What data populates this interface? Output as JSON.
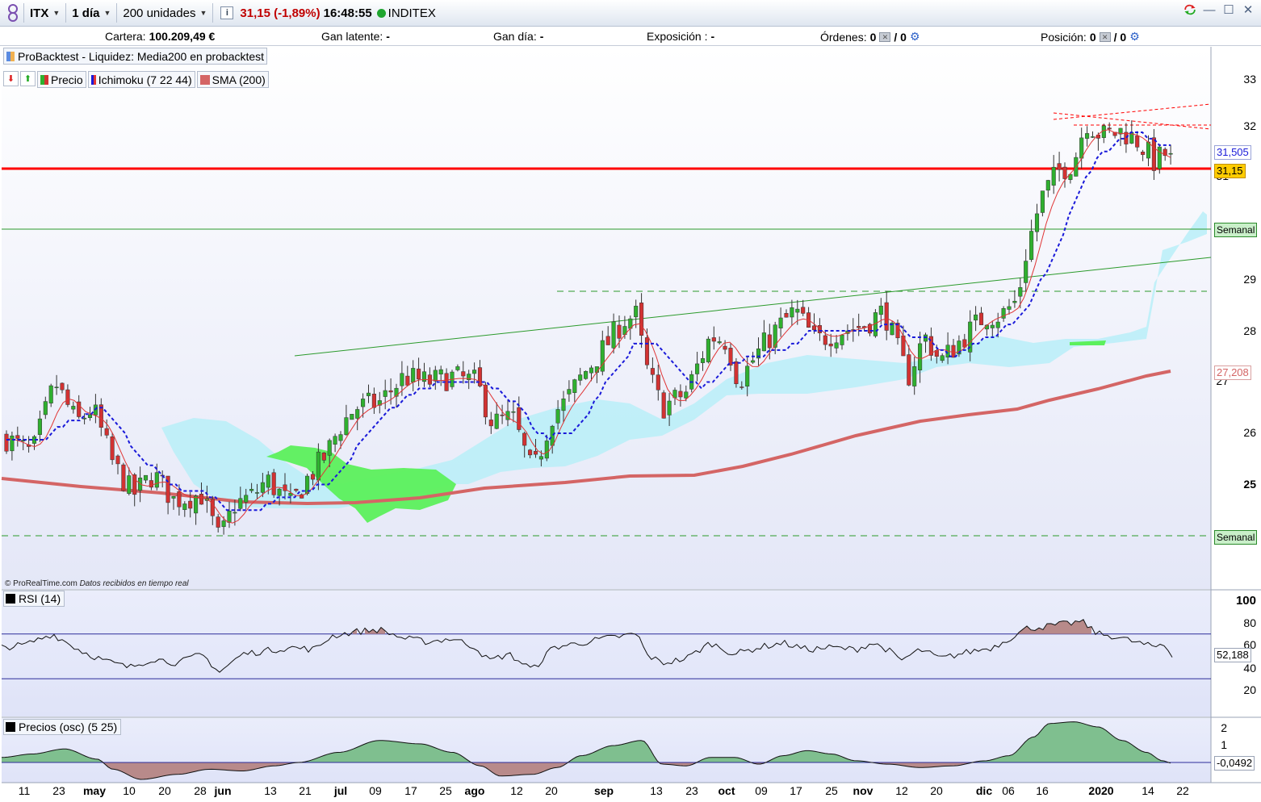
{
  "toolbar": {
    "symbol": "ITX",
    "period": "1 día",
    "units": "200 unidades",
    "info_icon": "i",
    "price": "31,15 (-1,89%)",
    "time": "16:48:55",
    "name": "INDITEX",
    "status_color": "#1fa52f"
  },
  "account": {
    "cartera_label": "Cartera:",
    "cartera_value": "100.209,49 €",
    "gan_latente_label": "Gan latente:",
    "gan_latente_value": "-",
    "gan_dia_label": "Gan día:",
    "gan_dia_value": "-",
    "exposicion_label": "Exposición :",
    "exposicion_value": "-",
    "ordenes_label": "Órdenes:",
    "ordenes_a": "0",
    "ordenes_b": "/ 0",
    "posicion_label": "Posición:",
    "posicion_a": "0",
    "posicion_b": "/ 0"
  },
  "strategy": {
    "label": "ProBacktest - Liquidez: Media200 en probacktest"
  },
  "legend": {
    "price": "Precio",
    "ichimoku": "Ichimoku (7 22 44)",
    "sma": "SMA (200)"
  },
  "copyright": {
    "source": "© ProRealTime.com",
    "note": "Datos recibidos en tiempo real"
  },
  "price_axis": {
    "ticks": [
      "33",
      "32",
      "31",
      "29",
      "28",
      "27",
      "26",
      "25"
    ],
    "last_price": "31,15",
    "kijun_value": "31,505",
    "sma_value": "27,208",
    "semanal_upper": "Semanal",
    "semanal_lower": "Semanal"
  },
  "rsi": {
    "label": "RSI (14)",
    "ticks": [
      "100",
      "80",
      "60",
      "40",
      "20"
    ],
    "value": "52,188"
  },
  "osc": {
    "label": "Precios (osc) (5 25)",
    "ticks": [
      "2",
      "1"
    ],
    "value": "-0,0492"
  },
  "x_axis": {
    "labels": [
      "11",
      "23",
      "may",
      "10",
      "20",
      "28",
      "jun",
      "13",
      "21",
      "jul",
      "09",
      "17",
      "25",
      "ago",
      "12",
      "20",
      "sep",
      "13",
      "23",
      "oct",
      "09",
      "17",
      "25",
      "nov",
      "12",
      "20",
      "dic",
      "06",
      "16",
      "2020",
      "14",
      "22"
    ],
    "bold": [
      "may",
      "jun",
      "jul",
      "ago",
      "sep",
      "oct",
      "nov",
      "dic",
      "2020"
    ]
  },
  "colors": {
    "up": "#2fb02f",
    "down": "#d23232",
    "support_line": "#ff0000",
    "kijun": "#1a1ad9",
    "tenkan": "#e03535",
    "sma": "#d46565",
    "cloud_bull": "#5cf05c",
    "cloud_bear": "#b8eff8",
    "chart_bg": "#eef0fb"
  }
}
